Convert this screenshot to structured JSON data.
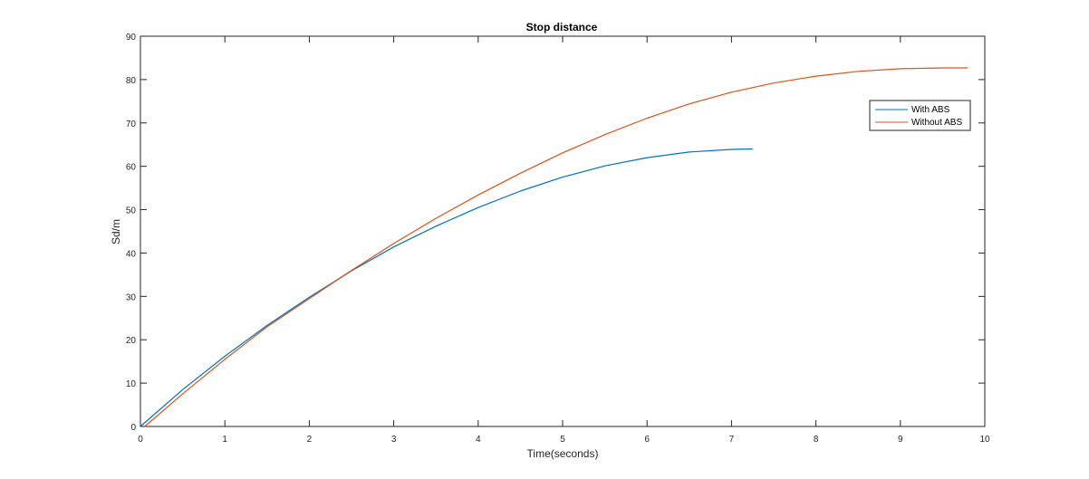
{
  "chart_data": {
    "type": "line",
    "title": "Stop distance",
    "xlabel": "Time(seconds)",
    "ylabel": "Sd/m",
    "xlim": [
      0,
      10
    ],
    "ylim": [
      0,
      90
    ],
    "xticks": [
      0,
      1,
      2,
      3,
      4,
      5,
      6,
      7,
      8,
      9,
      10
    ],
    "yticks": [
      0,
      10,
      20,
      30,
      40,
      50,
      60,
      70,
      80,
      90
    ],
    "grid": false,
    "legend_position": "top-right",
    "series": [
      {
        "name": "With ABS",
        "color": "#0072BD",
        "x": [
          0,
          0.5,
          1,
          1.5,
          2,
          2.5,
          3,
          3.5,
          4,
          4.5,
          5,
          5.5,
          6,
          6.5,
          7,
          7.25
        ],
        "y": [
          0,
          8.5,
          16.2,
          23.3,
          29.8,
          35.9,
          41.4,
          46.2,
          50.5,
          54.3,
          57.5,
          60.1,
          62.0,
          63.3,
          63.9,
          64.0
        ]
      },
      {
        "name": "Without ABS",
        "color": "#D95319",
        "x": [
          0.05,
          0.5,
          1,
          1.5,
          2,
          2.5,
          3,
          3.5,
          4,
          4.5,
          5,
          5.5,
          6,
          6.5,
          7,
          7.5,
          8,
          8.5,
          9,
          9.5,
          9.8
        ],
        "y": [
          0,
          7.5,
          15.5,
          23.0,
          29.5,
          36.0,
          42.2,
          48.0,
          53.4,
          58.4,
          63.1,
          67.3,
          71.1,
          74.4,
          77.1,
          79.2,
          80.8,
          81.9,
          82.5,
          82.7,
          82.7
        ]
      }
    ]
  }
}
